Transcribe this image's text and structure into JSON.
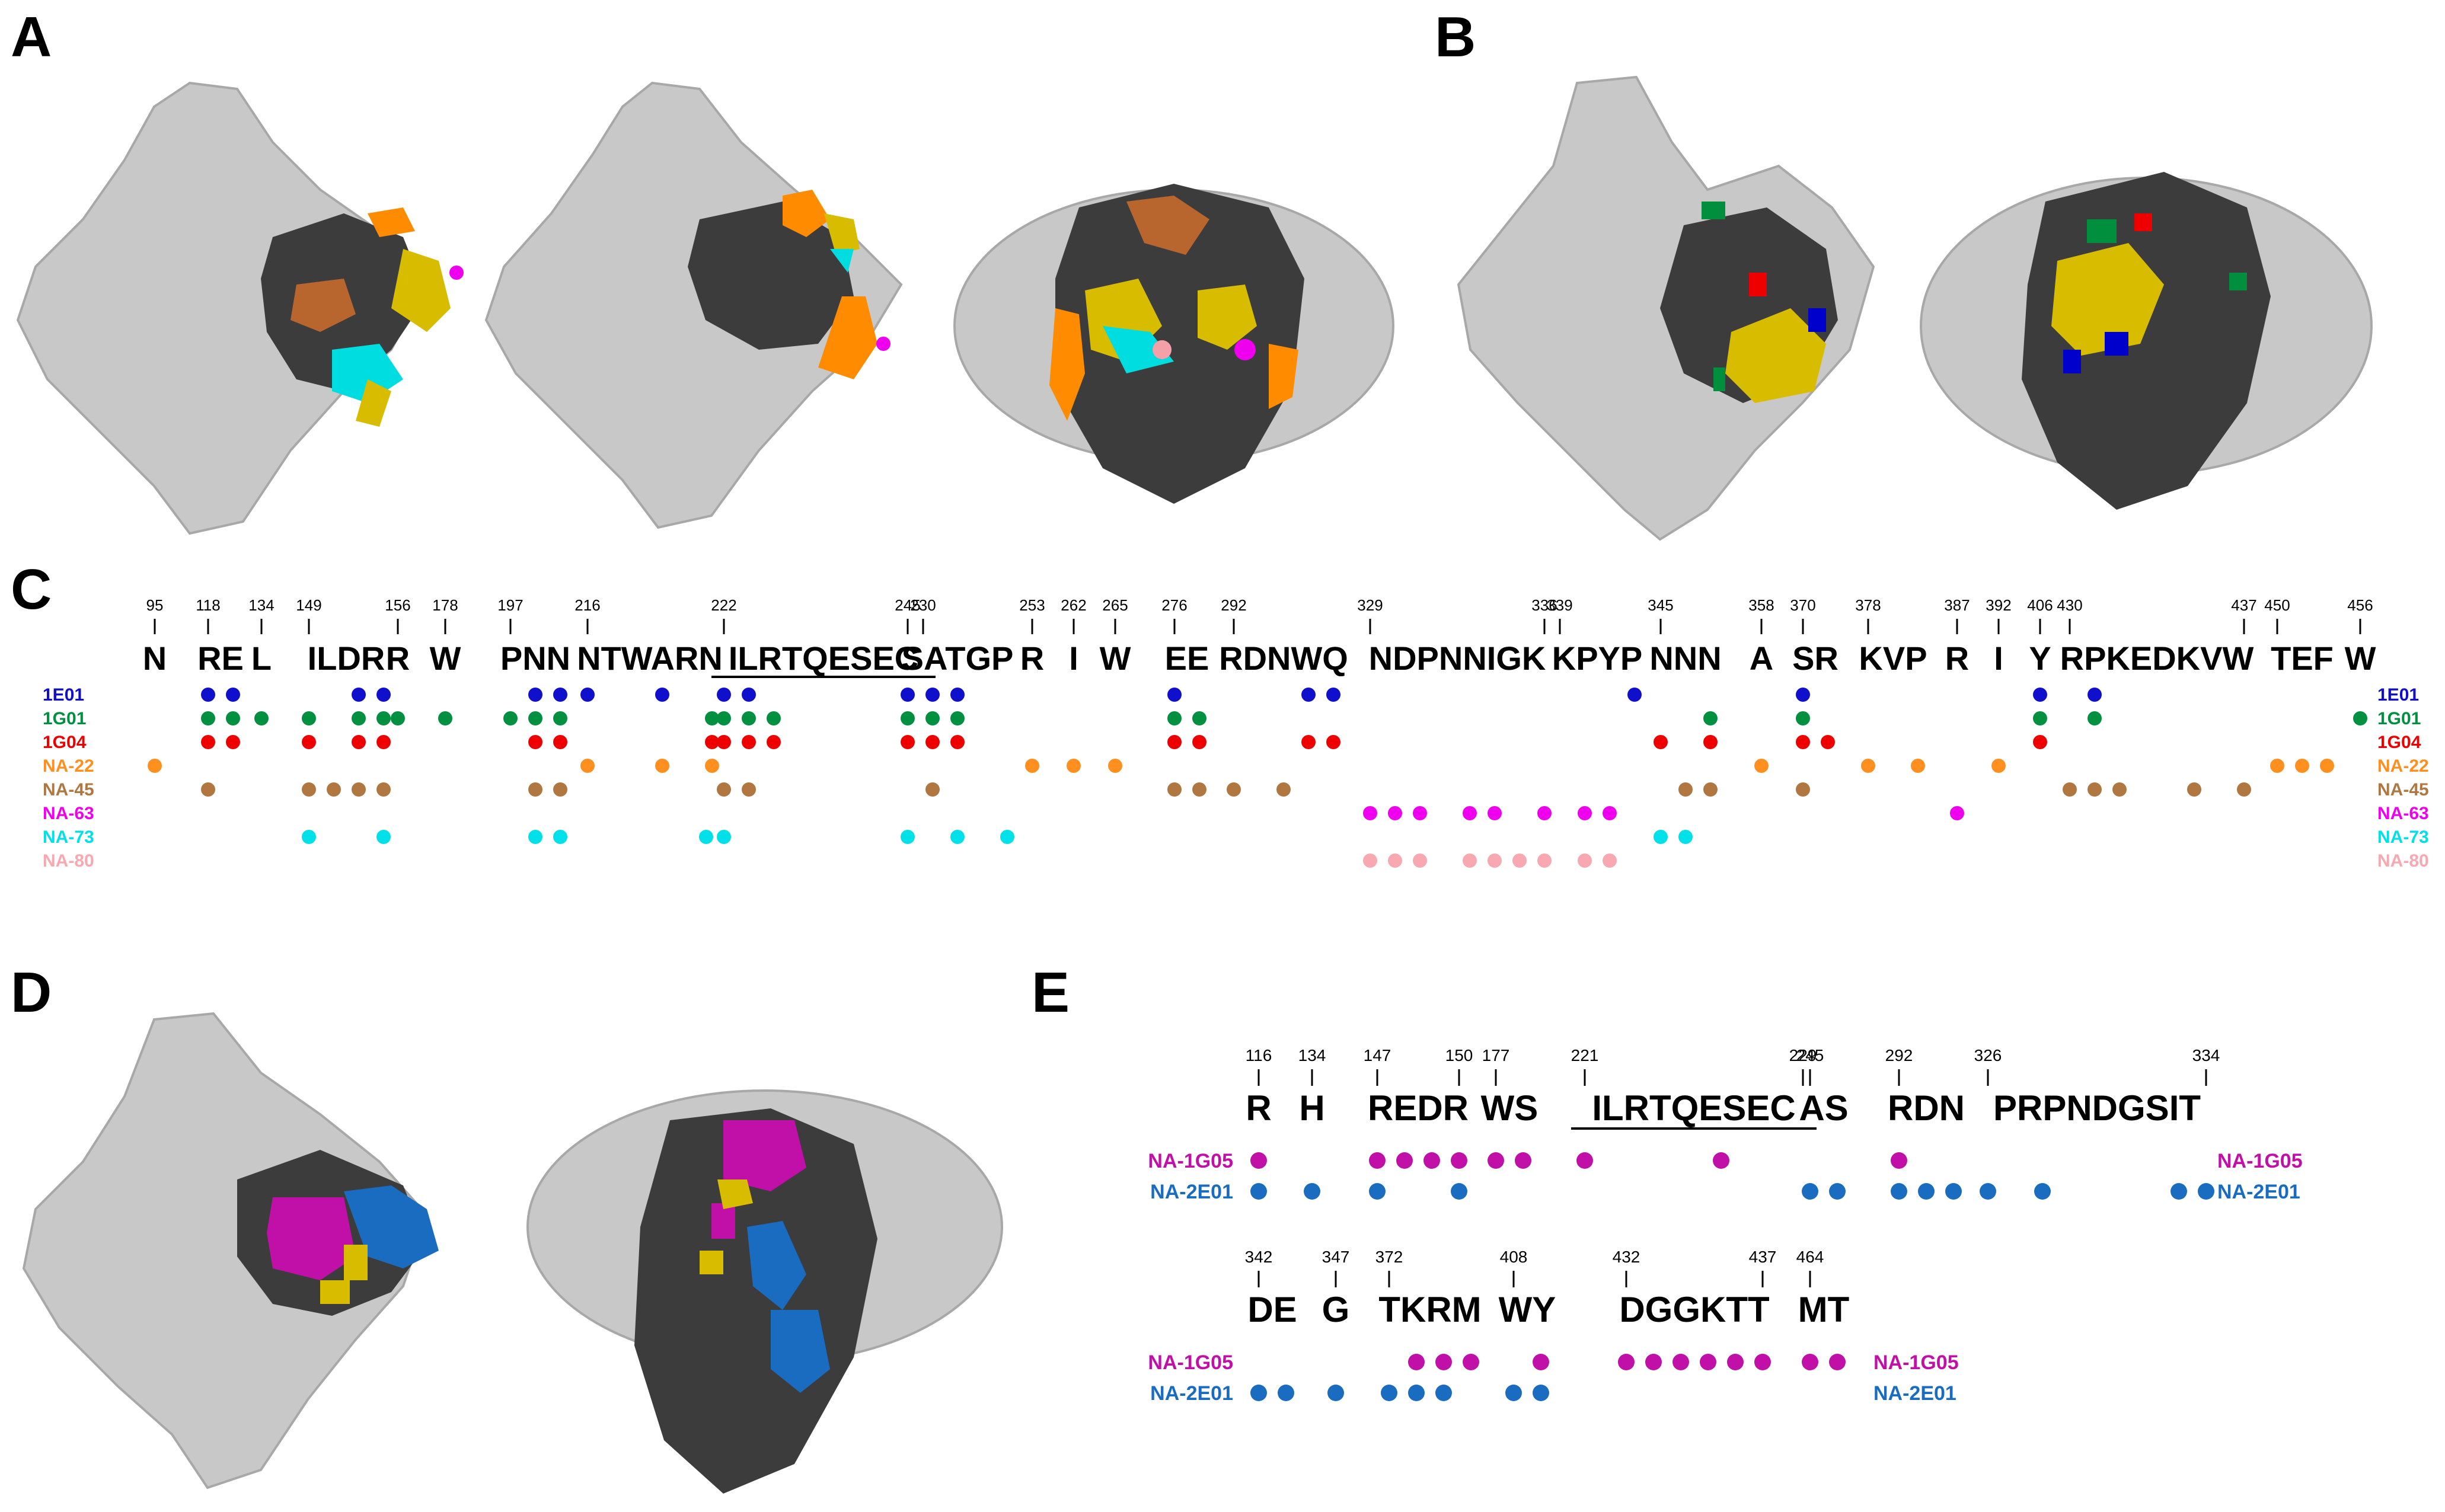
{
  "panels": {
    "A": {
      "label": "A"
    },
    "B": {
      "label": "B"
    },
    "C": {
      "label": "C"
    },
    "D": {
      "label": "D"
    },
    "E": {
      "label": "E"
    }
  },
  "colors": {
    "gray_surface": "#c8c8c8",
    "dark_domain": "#3c3c3c",
    "blue": "#0000cc",
    "green": "#008f3c",
    "red": "#ee0000",
    "orange": "#ff8c00",
    "brown": "#b07840",
    "magenta": "#ee00ee",
    "cyan": "#00dde0",
    "pink": "#f4a0a8",
    "yellow": "#d8bc00",
    "purple": "#c010a8",
    "steelblue": "#1a6cc0"
  },
  "panel_c": {
    "groups": [
      {
        "letters": "N",
        "pos": [
          "95"
        ]
      },
      {
        "letters": "RE",
        "pos": [
          "118"
        ]
      },
      {
        "letters": "L",
        "pos": [
          "134"
        ]
      },
      {
        "letters": "ILDR",
        "pos": [
          "149"
        ]
      },
      {
        "letters": "R",
        "pos": [
          "156"
        ]
      },
      {
        "letters": "W",
        "pos": [
          "178"
        ]
      },
      {
        "letters": "PNN",
        "pos": [
          "197"
        ]
      },
      {
        "letters": "NTWARN",
        "pos": [
          "216"
        ]
      },
      {
        "letters": "ILRTQESEC",
        "pos": [
          "222",
          "230"
        ],
        "underline": true
      },
      {
        "letters": "SATGP",
        "pos": [
          "245"
        ]
      },
      {
        "letters": "R",
        "pos": [
          "253"
        ]
      },
      {
        "letters": "I",
        "pos": [
          "262"
        ]
      },
      {
        "letters": "W",
        "pos": [
          "265"
        ]
      },
      {
        "letters": "EE",
        "pos": [
          "276"
        ]
      },
      {
        "letters": "RDNWQ",
        "pos": [
          "292"
        ]
      },
      {
        "letters": "NDPNNIGK",
        "pos": [
          "329",
          "336"
        ]
      },
      {
        "letters": "KPYP",
        "pos": [
          "339"
        ]
      },
      {
        "letters": "NNN",
        "pos": [
          "345"
        ]
      },
      {
        "letters": "A",
        "pos": [
          "358"
        ]
      },
      {
        "letters": "SR",
        "pos": [
          "370"
        ]
      },
      {
        "letters": "KVP",
        "pos": [
          "378"
        ]
      },
      {
        "letters": "R",
        "pos": [
          "387"
        ]
      },
      {
        "letters": "I",
        "pos": [
          "392"
        ]
      },
      {
        "letters": "Y",
        "pos": [
          "406"
        ]
      },
      {
        "letters": "RPKEDKVW",
        "pos": [
          "430",
          "437"
        ]
      },
      {
        "letters": "TEF",
        "pos": [
          "450"
        ]
      },
      {
        "letters": "W",
        "pos": [
          "456"
        ]
      }
    ],
    "rows": [
      {
        "name": "1E01",
        "color": "#1010cc"
      },
      {
        "name": "1G01",
        "color": "#009040"
      },
      {
        "name": "1G04",
        "color": "#ee0000"
      },
      {
        "name": "NA-22",
        "color": "#ff9020"
      },
      {
        "name": "NA-45",
        "color": "#b07840"
      },
      {
        "name": "NA-63",
        "color": "#ee00ee"
      },
      {
        "name": "NA-73",
        "color": "#00e0e8"
      },
      {
        "name": "NA-80",
        "color": "#f8a8b0"
      }
    ]
  },
  "panel_e": {
    "row1_groups": [
      {
        "letters": "R",
        "pos": [
          "116"
        ]
      },
      {
        "letters": "H",
        "pos": [
          "134"
        ]
      },
      {
        "letters": "REDR",
        "pos": [
          "147",
          "150"
        ]
      },
      {
        "letters": "WS",
        "pos": [
          "177"
        ]
      },
      {
        "letters": "ILRTQESEC",
        "pos": [
          "221",
          "229"
        ],
        "underline": true
      },
      {
        "letters": "AS",
        "pos": [
          "245"
        ]
      },
      {
        "letters": "RDN",
        "pos": [
          "292"
        ]
      },
      {
        "letters": "PRPNDGSIT",
        "pos": [
          "326",
          "334"
        ]
      }
    ],
    "row2_groups": [
      {
        "letters": "DE",
        "pos": [
          "342"
        ]
      },
      {
        "letters": "G",
        "pos": [
          "347"
        ]
      },
      {
        "letters": "TKRM",
        "pos": [
          "372"
        ]
      },
      {
        "letters": "WY",
        "pos": [
          "408"
        ]
      },
      {
        "letters": "DGGKTT",
        "pos": [
          "432",
          "437"
        ]
      },
      {
        "letters": "MT",
        "pos": [
          "464"
        ]
      }
    ],
    "rows": [
      {
        "name": "NA-1G05",
        "color": "#c010a8"
      },
      {
        "name": "NA-2E01",
        "color": "#1a6cc0"
      }
    ]
  }
}
